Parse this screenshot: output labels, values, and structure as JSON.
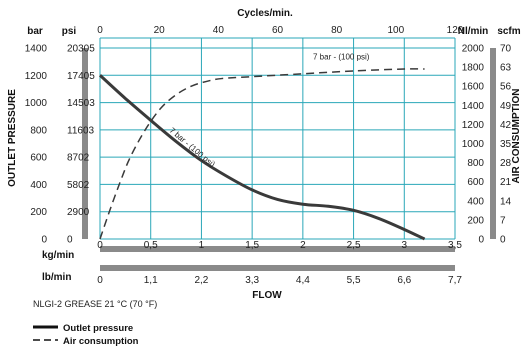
{
  "chart_data": {
    "type": "line",
    "note": "NLGI-2 GREASE 21 °C (70 °F)",
    "top_axis": {
      "title": "Cycles/min.",
      "range": [
        0,
        120
      ],
      "ticks": [
        "0",
        "20",
        "40",
        "60",
        "80",
        "100",
        "120"
      ]
    },
    "left_axis": {
      "title": "OUTLET PRESSURE",
      "units": [
        "bar",
        "psi"
      ],
      "bar_range": [
        0,
        1400
      ],
      "bar_ticks": [
        "0",
        "200",
        "400",
        "600",
        "800",
        "1000",
        "1200",
        "1400"
      ],
      "psi_ticks": [
        "0",
        "2900",
        "5802",
        "8702",
        "11603",
        "14503",
        "17405",
        "20305"
      ]
    },
    "right_axis": {
      "title": "AIR CONSUMPTION",
      "units": [
        "Nl/min",
        "scfm"
      ],
      "nlmin_range": [
        0,
        2000
      ],
      "nlmin_ticks": [
        "0",
        "200",
        "400",
        "600",
        "800",
        "1000",
        "1200",
        "1400",
        "1600",
        "1800",
        "2000"
      ],
      "scfm_ticks": [
        "0",
        "7",
        "14",
        "21",
        "28",
        "35",
        "42",
        "49",
        "56",
        "63",
        "70"
      ]
    },
    "bottom_axis": {
      "title": "FLOW",
      "kg_label": "kg/min",
      "kg_range": [
        0,
        3.5
      ],
      "kg_ticks": [
        "0",
        "0,5",
        "1",
        "1,5",
        "2",
        "2,5",
        "3",
        "3,5"
      ],
      "lb_label": "lb/min",
      "lb_ticks": [
        "0",
        "1,1",
        "2,2",
        "3,3",
        "4,4",
        "5,5",
        "6,6",
        "7,7"
      ]
    },
    "series": [
      {
        "name": "Outlet pressure",
        "unit": "bar",
        "curve_label": "7 bar - (100 psi)",
        "x": [
          0,
          0.25,
          0.5,
          0.75,
          1.0,
          1.25,
          1.5,
          1.75,
          2.0,
          2.25,
          2.5,
          2.75,
          3.0,
          3.2
        ],
        "y": [
          1200,
          1030,
          870,
          715,
          575,
          460,
          360,
          290,
          255,
          240,
          210,
          150,
          70,
          0
        ]
      },
      {
        "name": "Air consumption",
        "unit": "Nl/min",
        "curve_label": "7 bar - (100 psi)",
        "x": [
          0,
          0.1,
          0.2,
          0.3,
          0.45,
          0.6,
          0.75,
          0.9,
          1.05,
          1.2,
          1.5,
          2.0,
          2.5,
          3.0,
          3.2
        ],
        "y": [
          0,
          310,
          600,
          860,
          1150,
          1370,
          1510,
          1600,
          1650,
          1680,
          1700,
          1730,
          1760,
          1780,
          1780
        ]
      }
    ],
    "legend": [
      "Outlet pressure",
      "Air consumption"
    ],
    "colors": {
      "line": "#3a3a3a",
      "grid": "#2aa7b8",
      "axis_bar": "#8a8a8a"
    }
  }
}
